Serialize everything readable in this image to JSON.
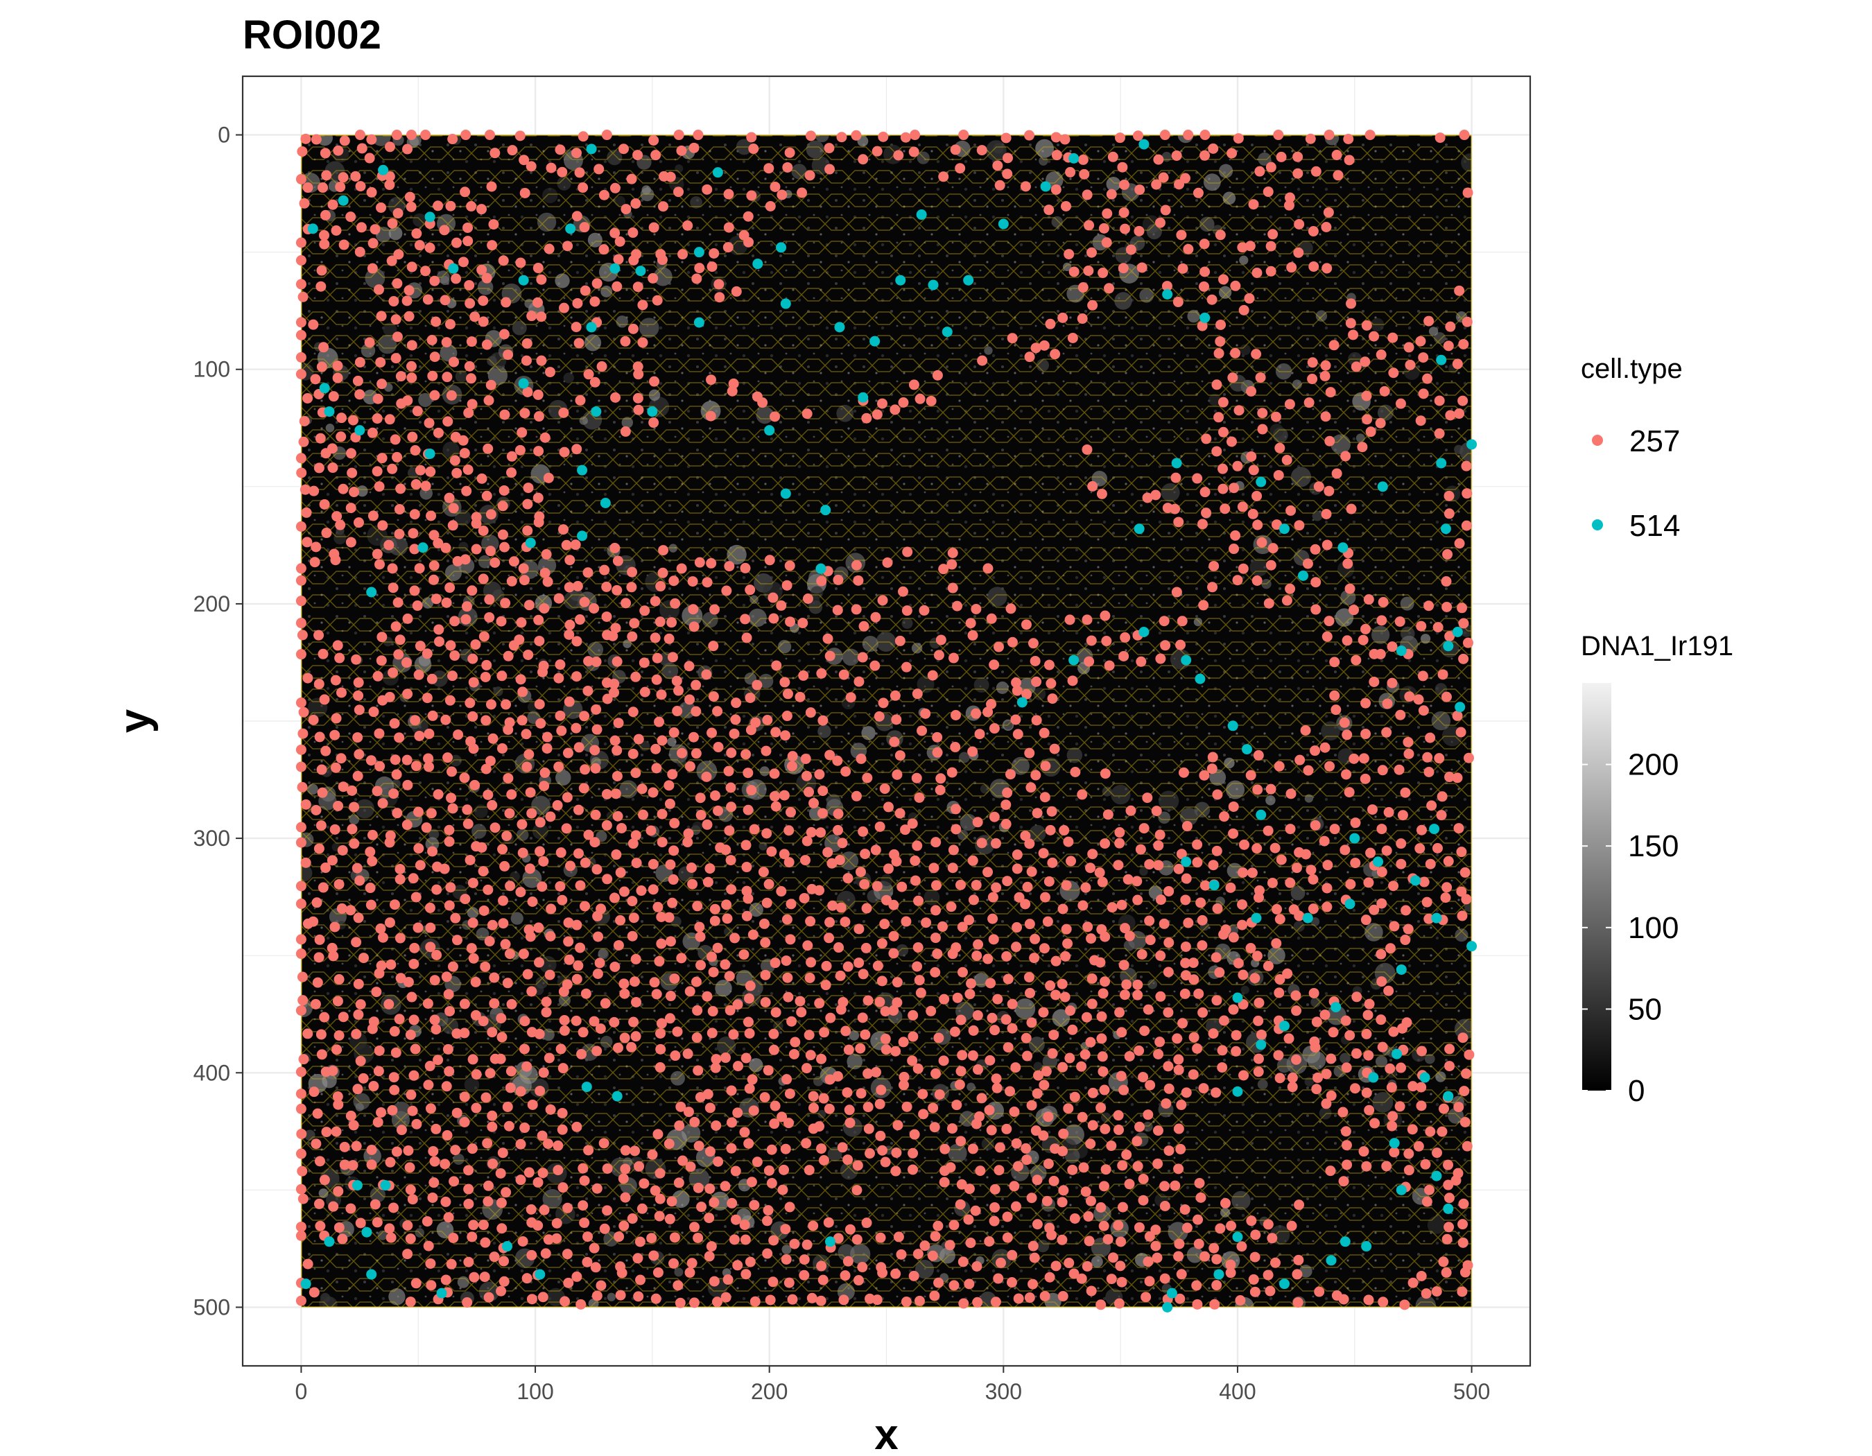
{
  "chart_data": {
    "type": "scatter",
    "title": "ROI002",
    "xlabel": "x",
    "ylabel": "y",
    "xlim": [
      -25,
      525
    ],
    "ylim": [
      -25,
      525
    ],
    "y_reversed": true,
    "x_ticks": [
      "0",
      "100",
      "200",
      "300",
      "400",
      "500"
    ],
    "y_ticks": [
      "0",
      "100",
      "200",
      "300",
      "400",
      "500"
    ],
    "grid": true,
    "background_image": {
      "extent_x": [
        0,
        500
      ],
      "extent_y": [
        0,
        500
      ],
      "description_channel": "DNA1_Ir191"
    },
    "outline_color": "#d4b400",
    "legend_position": "right",
    "color_legend": {
      "title": "cell.type",
      "entries": [
        {
          "label": "257",
          "color": "#F8766D"
        },
        {
          "label": "514",
          "color": "#00BFC4"
        }
      ]
    },
    "intensity_legend": {
      "title": "DNA1_Ir191",
      "range": [
        0,
        250
      ],
      "ticks": [
        "0",
        "50",
        "100",
        "150",
        "200"
      ]
    },
    "series": [
      {
        "name": "514",
        "color": "#00BFC4",
        "points": [
          [
            5,
            40
          ],
          [
            18,
            28
          ],
          [
            35,
            15
          ],
          [
            55,
            35
          ],
          [
            65,
            57
          ],
          [
            95,
            62
          ],
          [
            115,
            40
          ],
          [
            124,
            6
          ],
          [
            134,
            57
          ],
          [
            124,
            82
          ],
          [
            170,
            50
          ],
          [
            195,
            55
          ],
          [
            170,
            80
          ],
          [
            205,
            48
          ],
          [
            207,
            72
          ],
          [
            230,
            82
          ],
          [
            245,
            88
          ],
          [
            256,
            62
          ],
          [
            265,
            34
          ],
          [
            270,
            64
          ],
          [
            276,
            84
          ],
          [
            285,
            62
          ],
          [
            300,
            38
          ],
          [
            318,
            22
          ],
          [
            330,
            10
          ],
          [
            360,
            4
          ],
          [
            370,
            68
          ],
          [
            386,
            78
          ],
          [
            10,
            108
          ],
          [
            12,
            118
          ],
          [
            25,
            126
          ],
          [
            55,
            136
          ],
          [
            95,
            106
          ],
          [
            126,
            118
          ],
          [
            120,
            143
          ],
          [
            130,
            157
          ],
          [
            120,
            171
          ],
          [
            98,
            174
          ],
          [
            52,
            176
          ],
          [
            30,
            195
          ],
          [
            200,
            126
          ],
          [
            207,
            153
          ],
          [
            224,
            160
          ],
          [
            222,
            185
          ],
          [
            240,
            112
          ],
          [
            410,
            148
          ],
          [
            420,
            168
          ],
          [
            428,
            188
          ],
          [
            445,
            176
          ],
          [
            462,
            150
          ],
          [
            487,
            96
          ],
          [
            487,
            140
          ],
          [
            489,
            168
          ],
          [
            494,
            212
          ],
          [
            490,
            218
          ],
          [
            470,
            220
          ],
          [
            495,
            244
          ],
          [
            500,
            132
          ],
          [
            374,
            140
          ],
          [
            358,
            168
          ],
          [
            308,
            242
          ],
          [
            330,
            224
          ],
          [
            360,
            212
          ],
          [
            378,
            224
          ],
          [
            384,
            232
          ],
          [
            398,
            252
          ],
          [
            404,
            262
          ],
          [
            410,
            290
          ],
          [
            450,
            300
          ],
          [
            460,
            310
          ],
          [
            378,
            310
          ],
          [
            390,
            320
          ],
          [
            408,
            334
          ],
          [
            430,
            334
          ],
          [
            448,
            328
          ],
          [
            476,
            318
          ],
          [
            484,
            296
          ],
          [
            485,
            334
          ],
          [
            500,
            346
          ],
          [
            470,
            356
          ],
          [
            468,
            392
          ],
          [
            442,
            372
          ],
          [
            400,
            368
          ],
          [
            410,
            388
          ],
          [
            400,
            408
          ],
          [
            420,
            380
          ],
          [
            458,
            402
          ],
          [
            467,
            430
          ],
          [
            480,
            402
          ],
          [
            490,
            410
          ],
          [
            485,
            444
          ],
          [
            490,
            458
          ],
          [
            470,
            450
          ],
          [
            455,
            474
          ],
          [
            446,
            472
          ],
          [
            440,
            480
          ],
          [
            400,
            470
          ],
          [
            392,
            486
          ],
          [
            420,
            490
          ],
          [
            372,
            494
          ],
          [
            370,
            500
          ],
          [
            135,
            410
          ],
          [
            122,
            406
          ],
          [
            24,
            448
          ],
          [
            36,
            448
          ],
          [
            28,
            468
          ],
          [
            12,
            472
          ],
          [
            2,
            490
          ],
          [
            60,
            494
          ],
          [
            30,
            486
          ],
          [
            88,
            474
          ],
          [
            102,
            486
          ],
          [
            226,
            472
          ],
          [
            178,
            16
          ],
          [
            145,
            58
          ],
          [
            150,
            118
          ]
        ]
      }
    ]
  }
}
